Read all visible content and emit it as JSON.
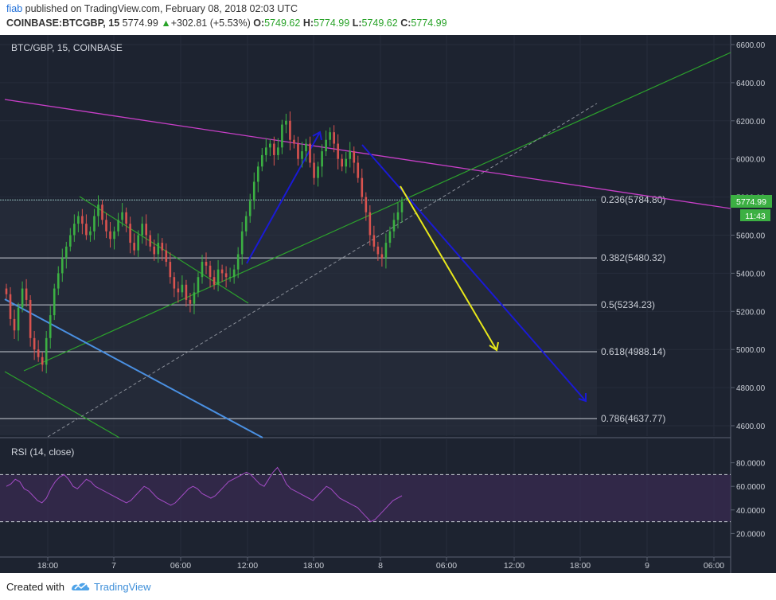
{
  "header": {
    "author": "fiab",
    "published": "published on TradingView.com, February 08, 2018 02:03 UTC",
    "symbol": "COINBASE:BTCGBP, 15",
    "last": "5774.99",
    "change_arrow": "▲",
    "change": "+302.81 (+5.53%)",
    "o_label": "O:",
    "o_value": "5749.62",
    "h_label": "H:",
    "h_value": "5774.99",
    "l_label": "L:",
    "l_value": "5749.62",
    "c_label": "C:",
    "c_value": "5774.99"
  },
  "footer": {
    "created": "Created with",
    "brand": "TradingView"
  },
  "colors": {
    "background": "#1d2330",
    "up": "#3cb043",
    "down": "#d9534f",
    "magenta": "#c83fc8",
    "green_line": "#2ca32c",
    "blue_arrow": "#1a1ad6",
    "yellow_arrow": "#e8e81a",
    "light_blue": "#4a90e2",
    "rsi_line": "#a24bc4"
  },
  "chart_data": [
    {
      "type": "candlestick",
      "title": "BTC/GBP, 15, COINBASE",
      "ylim": [
        4550,
        6650
      ],
      "yticks": [
        "6600.00",
        "6400.00",
        "6200.00",
        "6000.00",
        "5800.00",
        "5600.00",
        "5400.00",
        "5200.00",
        "5000.00",
        "4800.00",
        "4600.00"
      ],
      "xticks": [
        "18:00",
        "7",
        "06:00",
        "12:00",
        "18:00",
        "8",
        "06:00",
        "12:00",
        "18:00",
        "9",
        "06:00"
      ],
      "last_price_label": "5774.99",
      "countdown_label": "11:43",
      "fib_levels": [
        {
          "label": "0.236(5784.80)",
          "value": 5784.8
        },
        {
          "label": "0.382(5480.32)",
          "value": 5480.32
        },
        {
          "label": "0.5(5234.23)",
          "value": 5234.23
        },
        {
          "label": "0.618(4988.14)",
          "value": 4988.14
        },
        {
          "label": "0.786(4637.77)",
          "value": 4637.77
        }
      ],
      "closes": [
        5290,
        5160,
        5100,
        5220,
        5320,
        5260,
        5060,
        5000,
        4960,
        4920,
        5060,
        5180,
        5320,
        5400,
        5480,
        5540,
        5600,
        5660,
        5700,
        5660,
        5600,
        5620,
        5700,
        5760,
        5680,
        5620,
        5580,
        5620,
        5680,
        5720,
        5660,
        5560,
        5520,
        5600,
        5660,
        5600,
        5540,
        5500,
        5560,
        5520,
        5460,
        5380,
        5320,
        5300,
        5340,
        5260,
        5240,
        5300,
        5380,
        5460,
        5440,
        5380,
        5340,
        5420,
        5400,
        5380,
        5380,
        5420,
        5500,
        5620,
        5700,
        5780,
        5880,
        5960,
        6020,
        6060,
        6080,
        6020,
        6060,
        6180,
        6200,
        6100,
        6080,
        6000,
        6040,
        6080,
        5980,
        5900,
        5960,
        6040,
        6100,
        6140,
        6080,
        6000,
        5960,
        6000,
        6040,
        5980,
        5900,
        5800,
        5720,
        5600,
        5540,
        5500,
        5480,
        5560,
        5620,
        5680,
        5720,
        5775
      ]
    },
    {
      "type": "line",
      "title": "RSI (14, close)",
      "ylim": [
        0,
        100
      ],
      "yticks": [
        "80.0000",
        "60.0000",
        "40.0000",
        "20.0000"
      ],
      "bands": [
        70,
        30
      ],
      "values": [
        60,
        62,
        66,
        64,
        58,
        56,
        52,
        48,
        46,
        50,
        58,
        64,
        68,
        70,
        66,
        60,
        58,
        62,
        66,
        64,
        60,
        58,
        56,
        54,
        52,
        50,
        48,
        46,
        48,
        52,
        56,
        60,
        58,
        54,
        50,
        48,
        46,
        44,
        46,
        50,
        54,
        58,
        60,
        58,
        54,
        52,
        50,
        52,
        56,
        60,
        64,
        66,
        68,
        70,
        72,
        70,
        66,
        62,
        60,
        66,
        72,
        76,
        70,
        62,
        58,
        56,
        54,
        52,
        50,
        48,
        52,
        56,
        60,
        58,
        54,
        50,
        48,
        46,
        44,
        42,
        38,
        34,
        30,
        32,
        36,
        40,
        44,
        48,
        50,
        52
      ]
    }
  ]
}
